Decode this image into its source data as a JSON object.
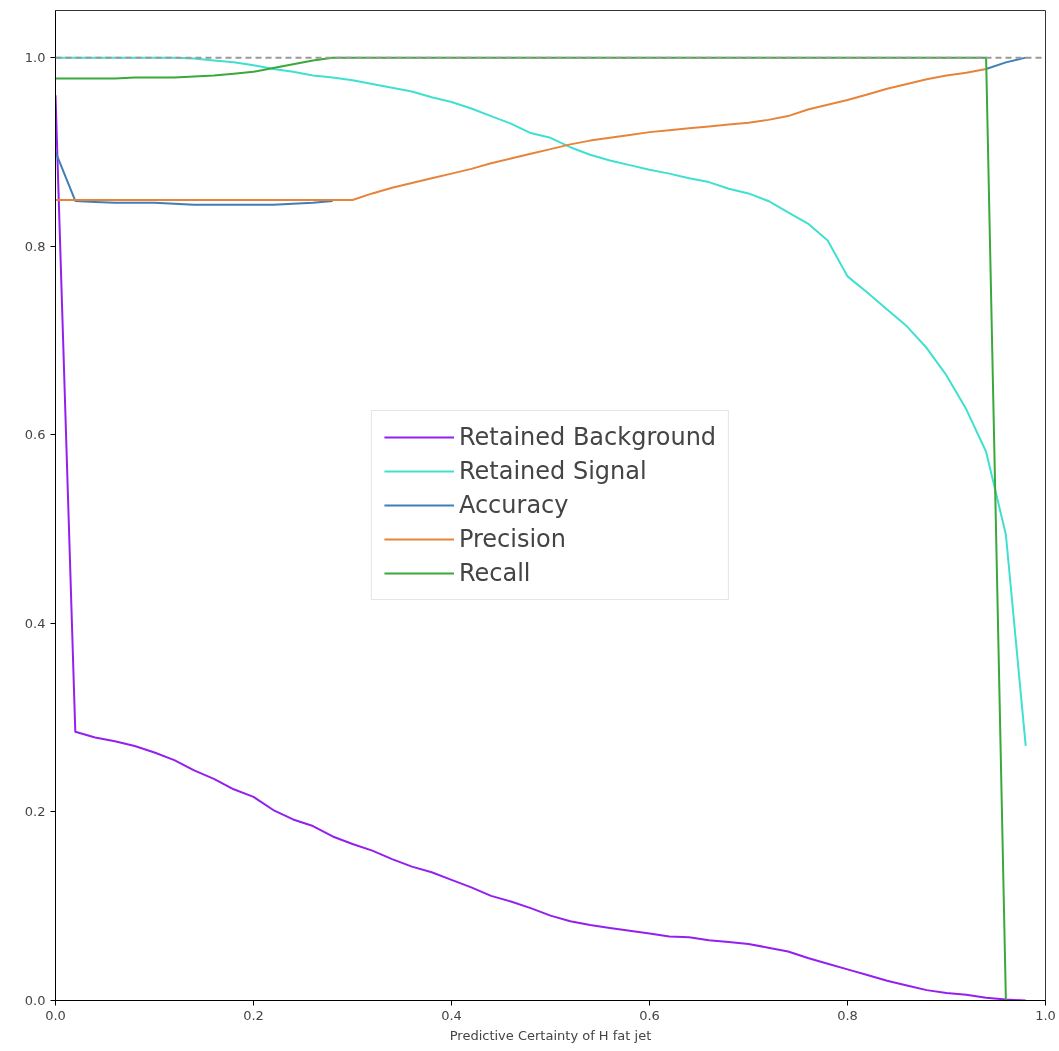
{
  "chart_data": {
    "type": "line",
    "xlabel": "Predictive Certainty of H fat jet",
    "x": [
      0,
      0.02,
      0.04,
      0.06,
      0.08,
      0.1,
      0.12,
      0.14,
      0.16,
      0.18,
      0.2,
      0.22,
      0.24,
      0.26,
      0.28,
      0.3,
      0.32,
      0.34,
      0.36,
      0.38,
      0.4,
      0.42,
      0.44,
      0.46,
      0.48,
      0.5,
      0.52,
      0.54,
      0.56,
      0.58,
      0.6,
      0.62,
      0.64,
      0.66,
      0.68,
      0.7,
      0.72,
      0.74,
      0.76,
      0.78,
      0.8,
      0.82,
      0.84,
      0.86,
      0.88,
      0.9,
      0.92,
      0.94,
      0.96,
      0.98
    ],
    "series": [
      {
        "name": "Retained Background",
        "color": "#9420f0",
        "values": [
          0.96,
          0.285,
          0.279,
          0.275,
          0.27,
          0.263,
          0.255,
          0.244,
          0.235,
          0.224,
          0.216,
          0.202,
          0.192,
          0.185,
          0.174,
          0.166,
          0.159,
          0.15,
          0.142,
          0.136,
          0.128,
          0.12,
          0.111,
          0.105,
          0.098,
          0.09,
          0.084,
          0.08,
          0.077,
          0.074,
          0.071,
          0.068,
          0.067,
          0.064,
          0.062,
          0.06,
          0.056,
          0.052,
          0.045,
          0.039,
          0.033,
          0.027,
          0.021,
          0.016,
          0.011,
          0.008,
          0.006,
          0.003,
          0.001,
          0.0
        ]
      },
      {
        "name": "Retained Signal",
        "color": "#40e0d0",
        "values": [
          1.0,
          1.0,
          1.0,
          1.0,
          1.0,
          1.0,
          1.0,
          0.999,
          0.997,
          0.995,
          0.992,
          0.988,
          0.985,
          0.981,
          0.979,
          0.976,
          0.972,
          0.968,
          0.964,
          0.958,
          0.953,
          0.946,
          0.938,
          0.93,
          0.92,
          0.915,
          0.905,
          0.897,
          0.891,
          0.886,
          0.881,
          0.877,
          0.872,
          0.868,
          0.861,
          0.856,
          0.848,
          0.836,
          0.824,
          0.806,
          0.768,
          0.751,
          0.733,
          0.715,
          0.692,
          0.663,
          0.627,
          0.582,
          0.494,
          0.27
        ]
      },
      {
        "name": "Accuracy",
        "color": "#3f7fb8",
        "values": [
          0.9,
          0.848,
          0.847,
          0.846,
          0.846,
          0.846,
          0.845,
          0.844,
          0.844,
          0.844,
          0.844,
          0.844,
          0.845,
          0.846,
          0.848,
          null,
          null,
          null,
          null,
          null,
          null,
          null,
          null,
          null,
          null,
          null,
          null,
          null,
          null,
          null,
          null,
          null,
          null,
          null,
          null,
          null,
          null,
          null,
          null,
          null,
          null,
          null,
          null,
          null,
          null,
          null,
          null,
          0.988,
          0.995,
          1.0
        ]
      },
      {
        "name": "Precision",
        "color": "#e8843a",
        "values": [
          0.849,
          0.849,
          0.849,
          0.849,
          0.849,
          0.849,
          0.849,
          0.849,
          0.849,
          0.849,
          0.849,
          0.849,
          0.849,
          0.849,
          0.849,
          0.849,
          0.856,
          0.862,
          0.867,
          0.872,
          0.877,
          0.882,
          0.888,
          0.893,
          0.898,
          0.903,
          0.908,
          0.912,
          0.915,
          0.918,
          0.921,
          0.923,
          0.925,
          0.927,
          0.929,
          0.931,
          0.934,
          0.938,
          0.945,
          0.95,
          0.955,
          0.961,
          0.967,
          0.972,
          0.977,
          0.981,
          0.984,
          0.988,
          null,
          null
        ]
      },
      {
        "name": "Recall",
        "color": "#3aa83a",
        "values": [
          0.978,
          0.978,
          0.978,
          0.978,
          0.979,
          0.979,
          0.979,
          0.98,
          0.981,
          0.983,
          0.985,
          0.989,
          0.993,
          0.997,
          1.0,
          1.0,
          1.0,
          1.0,
          1.0,
          1.0,
          1.0,
          1.0,
          1.0,
          1.0,
          1.0,
          1.0,
          1.0,
          1.0,
          1.0,
          1.0,
          1.0,
          1.0,
          1.0,
          1.0,
          1.0,
          1.0,
          1.0,
          1.0,
          1.0,
          1.0,
          1.0,
          1.0,
          1.0,
          1.0,
          1.0,
          1.0,
          1.0,
          1.0,
          0.0,
          null
        ]
      }
    ],
    "ref_lines": [
      {
        "axis": "y",
        "value": 1.0,
        "color": "#999999",
        "line_style": "dashed"
      }
    ],
    "xlim": [
      0,
      1
    ],
    "ylim": [
      0,
      1.05
    ],
    "xticks": [
      {
        "value": 0,
        "label": "0.0"
      },
      0.2,
      0.4,
      0.6,
      0.8,
      {
        "value": 1,
        "label": "1.0"
      }
    ],
    "yticks": [
      {
        "value": 0,
        "label": "0.0"
      },
      0.2,
      0.4,
      0.6,
      0.8,
      {
        "value": 1,
        "label": "1.0"
      }
    ],
    "grid": false,
    "legend": "center",
    "line_style": "solid"
  }
}
